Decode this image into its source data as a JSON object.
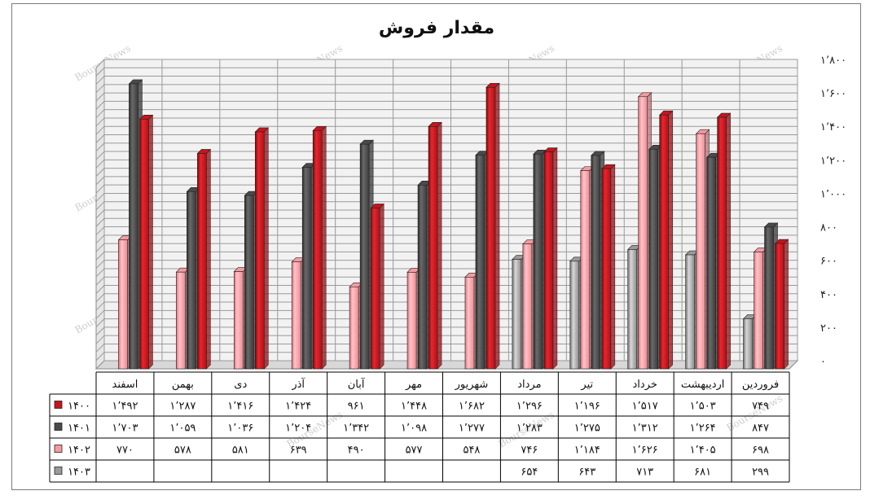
{
  "chart_data": {
    "type": "bar",
    "title": "مقدار فروش",
    "categories": [
      "فروردین",
      "اردیبهشت",
      "خرداد",
      "تیر",
      "مرداد",
      "شهریور",
      "مهر",
      "آبان",
      "آذر",
      "دی",
      "بهمن",
      "اسفند"
    ],
    "ylim": [
      0,
      1800
    ],
    "yticks": [
      0,
      200,
      400,
      600,
      800,
      1000,
      1200,
      1400,
      1600,
      1800
    ],
    "ytick_labels": [
      "۰",
      "۲۰۰",
      "۴۰۰",
      "۶۰۰",
      "۸۰۰",
      "۱٬۰۰۰",
      "۱٬۲۰۰",
      "۱٬۴۰۰",
      "۱٬۶۰۰",
      "۱٬۸۰۰"
    ],
    "grid": true,
    "legend_placement": "table-left",
    "series": [
      {
        "name": "۱۴۰۰",
        "color": "#c8141c",
        "values": [
          749,
          1503,
          1517,
          1196,
          1296,
          1682,
          1448,
          961,
          1424,
          1416,
          1287,
          1492
        ],
        "labels": [
          "۷۴۹",
          "۱٬۵۰۳",
          "۱٬۵۱۷",
          "۱٬۱۹۶",
          "۱٬۲۹۶",
          "۱٬۶۸۲",
          "۱٬۴۴۸",
          "۹۶۱",
          "۱٬۴۲۴",
          "۱٬۴۱۶",
          "۱٬۲۸۷",
          "۱٬۴۹۲"
        ]
      },
      {
        "name": "۱۴۰۱",
        "color": "#4a4a4a",
        "values": [
          847,
          1264,
          1312,
          1275,
          1283,
          1277,
          1098,
          1342,
          1204,
          1036,
          1059,
          1703
        ],
        "labels": [
          "۸۴۷",
          "۱٬۲۶۴",
          "۱٬۳۱۲",
          "۱٬۲۷۵",
          "۱٬۲۸۳",
          "۱٬۲۷۷",
          "۱٬۰۹۸",
          "۱٬۳۴۲",
          "۱٬۲۰۴",
          "۱٬۰۳۶",
          "۱٬۰۵۹",
          "۱٬۷۰۳"
        ]
      },
      {
        "name": "۱۴۰۲",
        "color": "#f79aa0",
        "values": [
          698,
          1405,
          1626,
          1184,
          746,
          548,
          577,
          490,
          639,
          581,
          578,
          770
        ],
        "labels": [
          "۶۹۸",
          "۱٬۴۰۵",
          "۱٬۶۲۶",
          "۱٬۱۸۴",
          "۷۴۶",
          "۵۴۸",
          "۵۷۷",
          "۴۹۰",
          "۶۳۹",
          "۵۸۱",
          "۵۷۸",
          "۷۷۰"
        ]
      },
      {
        "name": "۱۴۰۳",
        "color": "#9a9a9a",
        "values": [
          299,
          681,
          713,
          643,
          654,
          null,
          null,
          null,
          null,
          null,
          null,
          null
        ],
        "labels": [
          "۲۹۹",
          "۶۸۱",
          "۷۱۳",
          "۶۴۳",
          "۶۵۴",
          "",
          "",
          "",
          "",
          "",
          "",
          ""
        ]
      }
    ],
    "watermark": "BourseNews"
  }
}
